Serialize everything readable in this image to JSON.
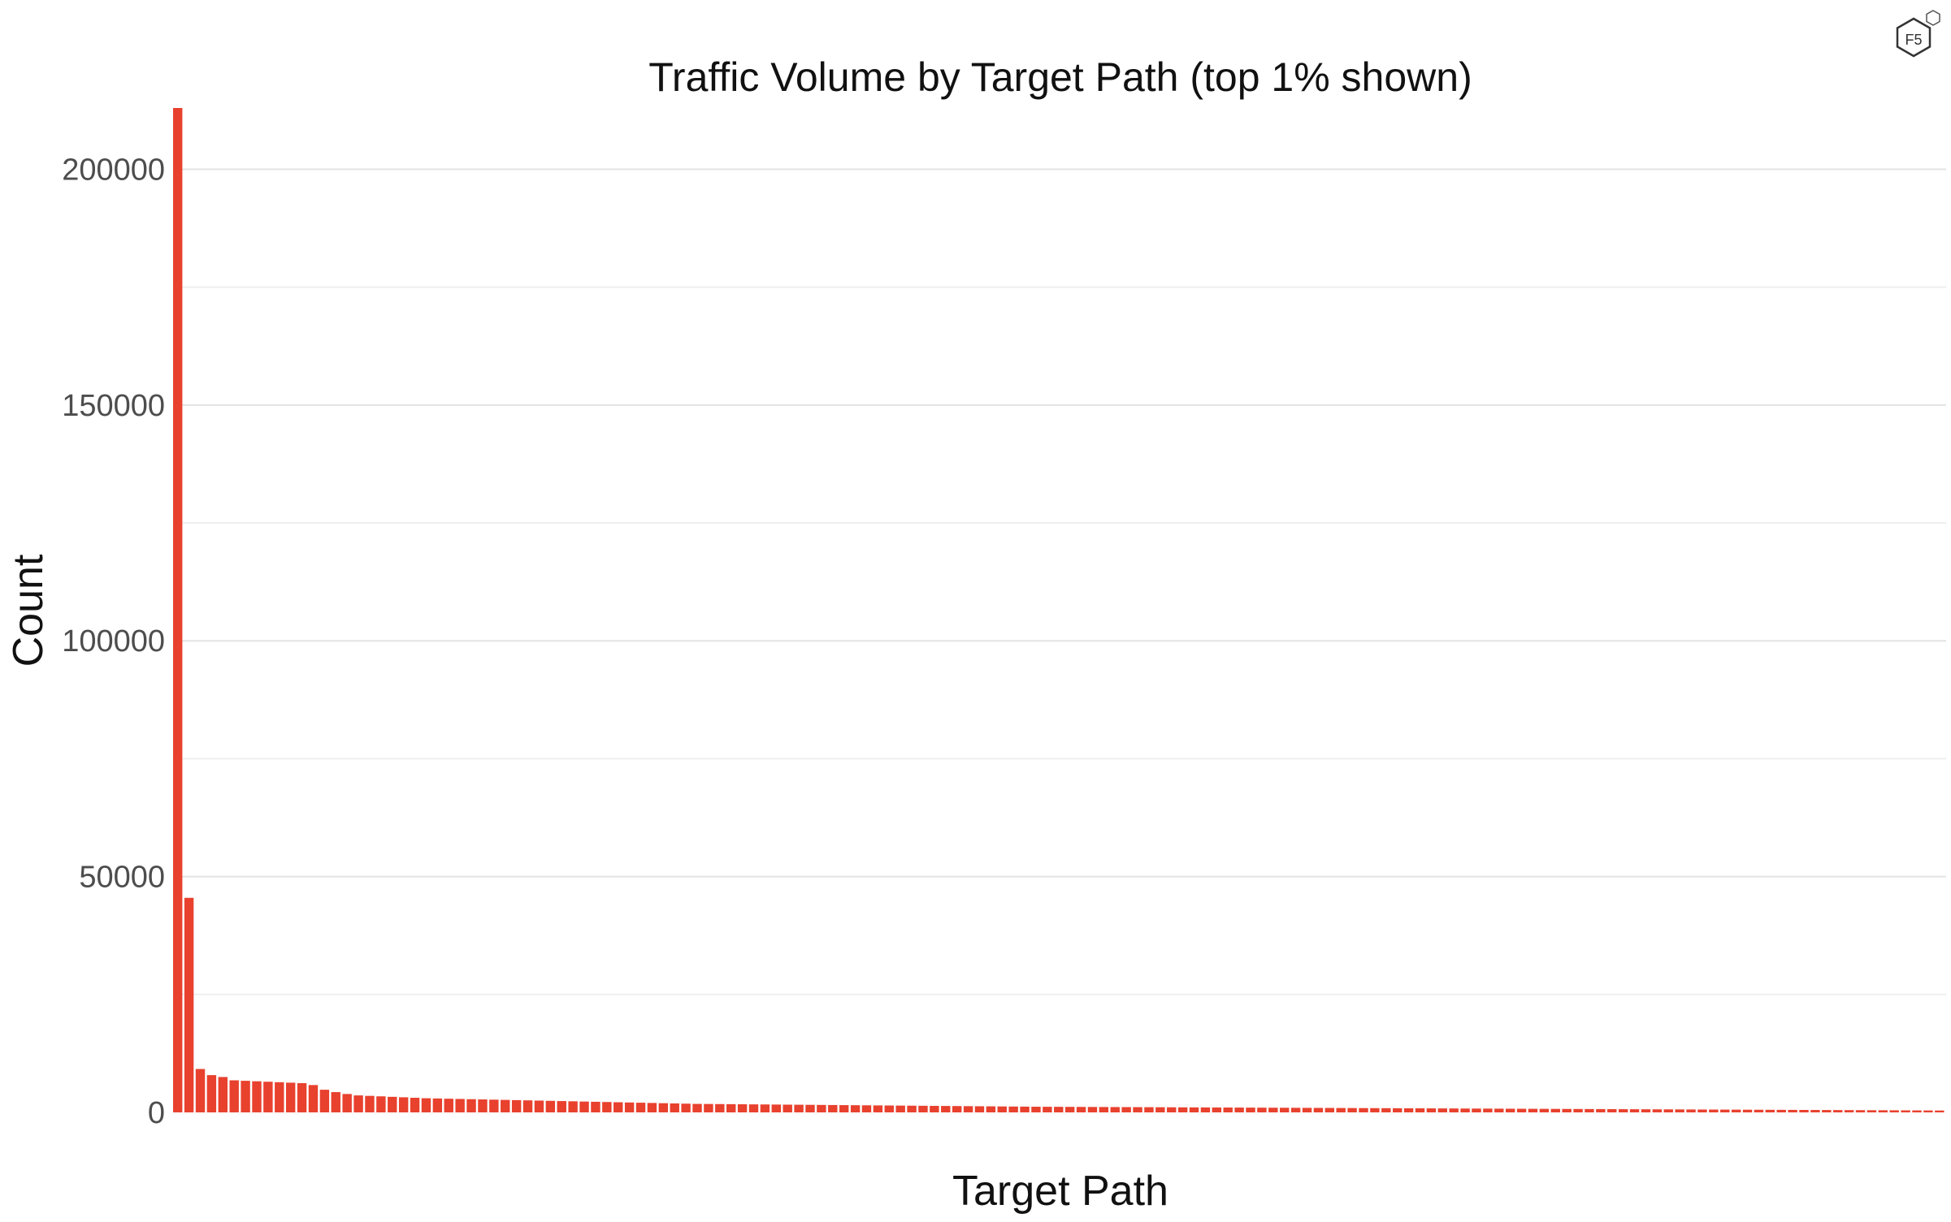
{
  "chart_data": {
    "type": "bar",
    "title": "Traffic Volume by Target Path (top 1% shown)",
    "xlabel": "Target Path",
    "ylabel": "Count",
    "ylim": [
      0,
      213000
    ],
    "y_ticks": [
      0,
      50000,
      100000,
      150000,
      200000
    ],
    "grid": true,
    "x_tick_labels_shown": false,
    "bar_color": "#e8412e",
    "series": [
      {
        "values": [
          213000,
          45500,
          9200,
          7900,
          7500,
          6800,
          6700,
          6600,
          6500,
          6400,
          6300,
          6200,
          5800,
          4800,
          4300,
          3900,
          3600,
          3500,
          3400,
          3300,
          3200,
          3100,
          3000,
          2950,
          2900,
          2850,
          2800,
          2750,
          2700,
          2650,
          2600,
          2550,
          2500,
          2450,
          2400,
          2350,
          2300,
          2250,
          2200,
          2150,
          2100,
          2050,
          2000,
          1950,
          1900,
          1850,
          1800,
          1780,
          1760,
          1740,
          1720,
          1700,
          1680,
          1660,
          1640,
          1620,
          1600,
          1580,
          1560,
          1540,
          1520,
          1500,
          1480,
          1460,
          1440,
          1420,
          1400,
          1380,
          1360,
          1340,
          1320,
          1300,
          1280,
          1260,
          1240,
          1220,
          1200,
          1190,
          1180,
          1170,
          1160,
          1150,
          1140,
          1130,
          1120,
          1110,
          1100,
          1090,
          1080,
          1070,
          1060,
          1050,
          1040,
          1030,
          1020,
          1010,
          1000,
          990,
          980,
          970,
          960,
          950,
          940,
          930,
          920,
          910,
          900,
          890,
          880,
          870,
          860,
          850,
          840,
          830,
          820,
          810,
          800,
          790,
          780,
          770,
          760,
          750,
          740,
          730,
          720,
          710,
          700,
          690,
          680,
          670,
          660,
          650,
          640,
          630,
          620,
          610,
          600,
          590,
          580,
          570,
          560,
          550,
          540,
          530,
          520,
          510,
          500,
          490,
          480,
          470,
          460,
          450,
          440,
          430,
          420,
          410,
          400
        ]
      }
    ]
  }
}
